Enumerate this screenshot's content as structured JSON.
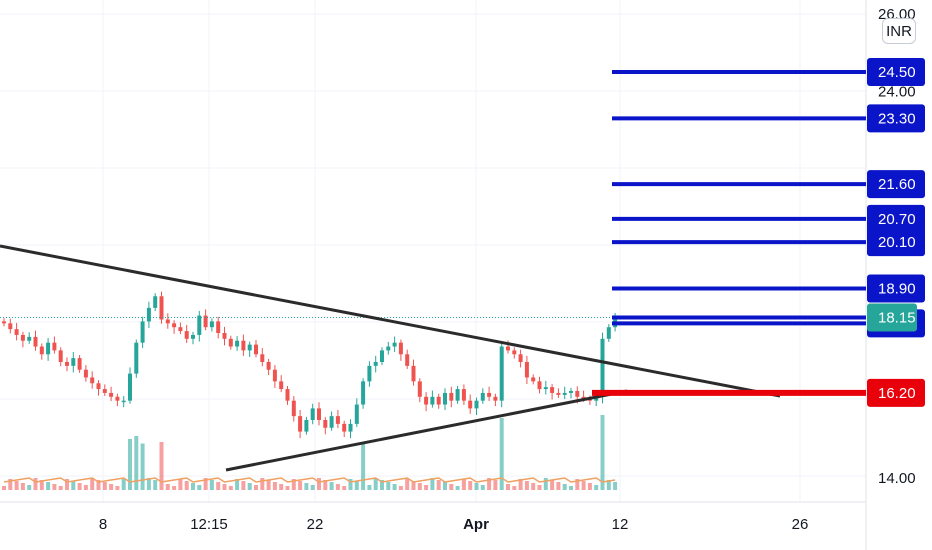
{
  "chart_data": {
    "type": "candlestick",
    "currency": "INR",
    "y_axis": {
      "min": 13.4,
      "max": 26.0,
      "ticks": [
        {
          "value": 26.0,
          "label": "26.00"
        },
        {
          "value": 24.0,
          "label": "24.00"
        },
        {
          "value": 14.0,
          "label": "14.00"
        }
      ]
    },
    "x_axis": {
      "ticks": [
        "8",
        "12:15",
        "22",
        "Apr",
        "12",
        "26"
      ]
    },
    "last_price": {
      "value": 18.15,
      "label": "18.15"
    },
    "levels": [
      {
        "value": 24.5,
        "label": "24.50",
        "color": "#0a14c8"
      },
      {
        "value": 23.3,
        "label": "23.30",
        "color": "#0a14c8"
      },
      {
        "value": 21.6,
        "label": "21.60",
        "color": "#0a14c8"
      },
      {
        "value": 20.7,
        "label": "20.70",
        "color": "#0a14c8"
      },
      {
        "value": 20.1,
        "label": "20.10",
        "color": "#0a14c8"
      },
      {
        "value": 18.9,
        "label": "18.90",
        "color": "#0a14c8"
      },
      {
        "value": 18.15,
        "label": "",
        "color": "#0a14c8"
      },
      {
        "value": 18.0,
        "label": "18.00",
        "color": "#0a14c8"
      },
      {
        "value": 16.2,
        "label": "16.20",
        "color": "#e8000b"
      }
    ],
    "trendlines": [
      {
        "name": "upper-trendline",
        "color": "#2b2b2b"
      },
      {
        "name": "lower-trendline",
        "color": "#2b2b2b"
      }
    ],
    "close_series": [
      18.0,
      17.85,
      17.7,
      17.55,
      17.65,
      17.4,
      17.2,
      17.5,
      17.3,
      17.0,
      16.9,
      17.1,
      16.8,
      16.6,
      16.45,
      16.3,
      16.2,
      16.1,
      16.0,
      16.0,
      16.7,
      17.5,
      18.05,
      18.4,
      18.7,
      18.1,
      18.0,
      17.9,
      17.8,
      17.6,
      17.7,
      18.2,
      17.9,
      18.05,
      17.75,
      17.6,
      17.4,
      17.55,
      17.3,
      17.45,
      17.2,
      17.0,
      16.8,
      16.5,
      16.3,
      16.0,
      15.6,
      15.2,
      15.5,
      15.8,
      15.5,
      15.3,
      15.6,
      15.4,
      15.2,
      15.4,
      15.9,
      16.5,
      16.9,
      17.0,
      17.3,
      17.4,
      17.5,
      17.2,
      16.9,
      16.5,
      16.1,
      15.9,
      16.1,
      15.9,
      16.2,
      16.0,
      16.3,
      16.0,
      15.8,
      16.0,
      16.2,
      16.1,
      16.0,
      17.4,
      17.3,
      17.2,
      17.0,
      16.6,
      16.5,
      16.3,
      16.35,
      16.2,
      16.15,
      16.2,
      16.25,
      16.1,
      16.05,
      16.0,
      16.1,
      17.6,
      17.9,
      18.15
    ],
    "colors": {
      "up": "#26a69a",
      "down": "#ef5350",
      "volume_ma": "#f0a060"
    }
  }
}
